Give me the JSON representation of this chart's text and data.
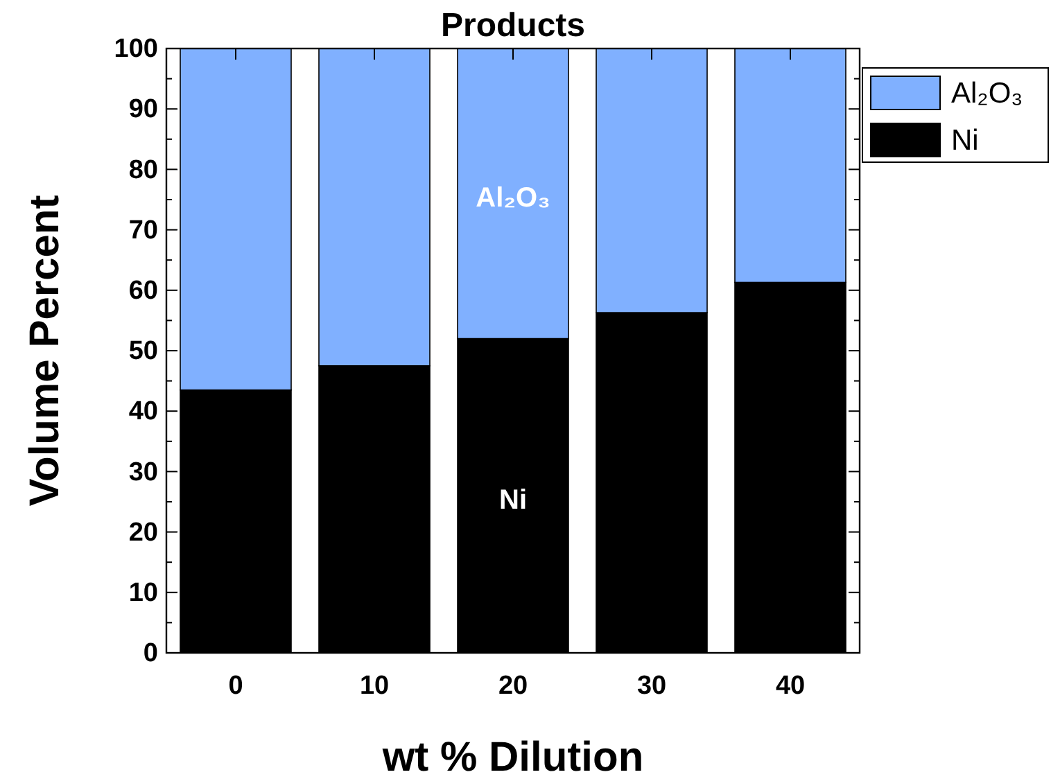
{
  "chart_data": {
    "type": "bar",
    "title": "Products",
    "xlabel": "wt % Dilution",
    "ylabel": "Volume Percent",
    "categories": [
      "0",
      "10",
      "20",
      "30",
      "40"
    ],
    "stacked": true,
    "series": [
      {
        "name": "Ni",
        "color": "#000000",
        "values": [
          43.5,
          47.5,
          52,
          56.3,
          61.3
        ]
      },
      {
        "name": "Al₂O₃",
        "color": "#80b0ff",
        "values": [
          56.5,
          52.5,
          48,
          43.7,
          38.7
        ]
      }
    ],
    "ylim": [
      0,
      100
    ],
    "yticks": [
      0,
      {
        "value": 5,
        "label": null
      },
      10,
      {
        "value": 15,
        "label": null
      },
      20,
      {
        "value": 25,
        "label": null
      },
      30,
      {
        "value": 35,
        "label": null
      },
      40,
      {
        "value": 45,
        "label": null
      },
      50,
      {
        "value": 55,
        "label": null
      },
      60,
      {
        "value": 65,
        "label": null
      },
      70,
      {
        "value": 75,
        "label": null
      },
      80,
      {
        "value": 85,
        "label": null
      },
      90,
      {
        "value": 95,
        "label": null
      },
      100
    ],
    "annotations": [
      "Al₂O₃",
      "Ni"
    ],
    "legend": "top right",
    "grid": false
  }
}
